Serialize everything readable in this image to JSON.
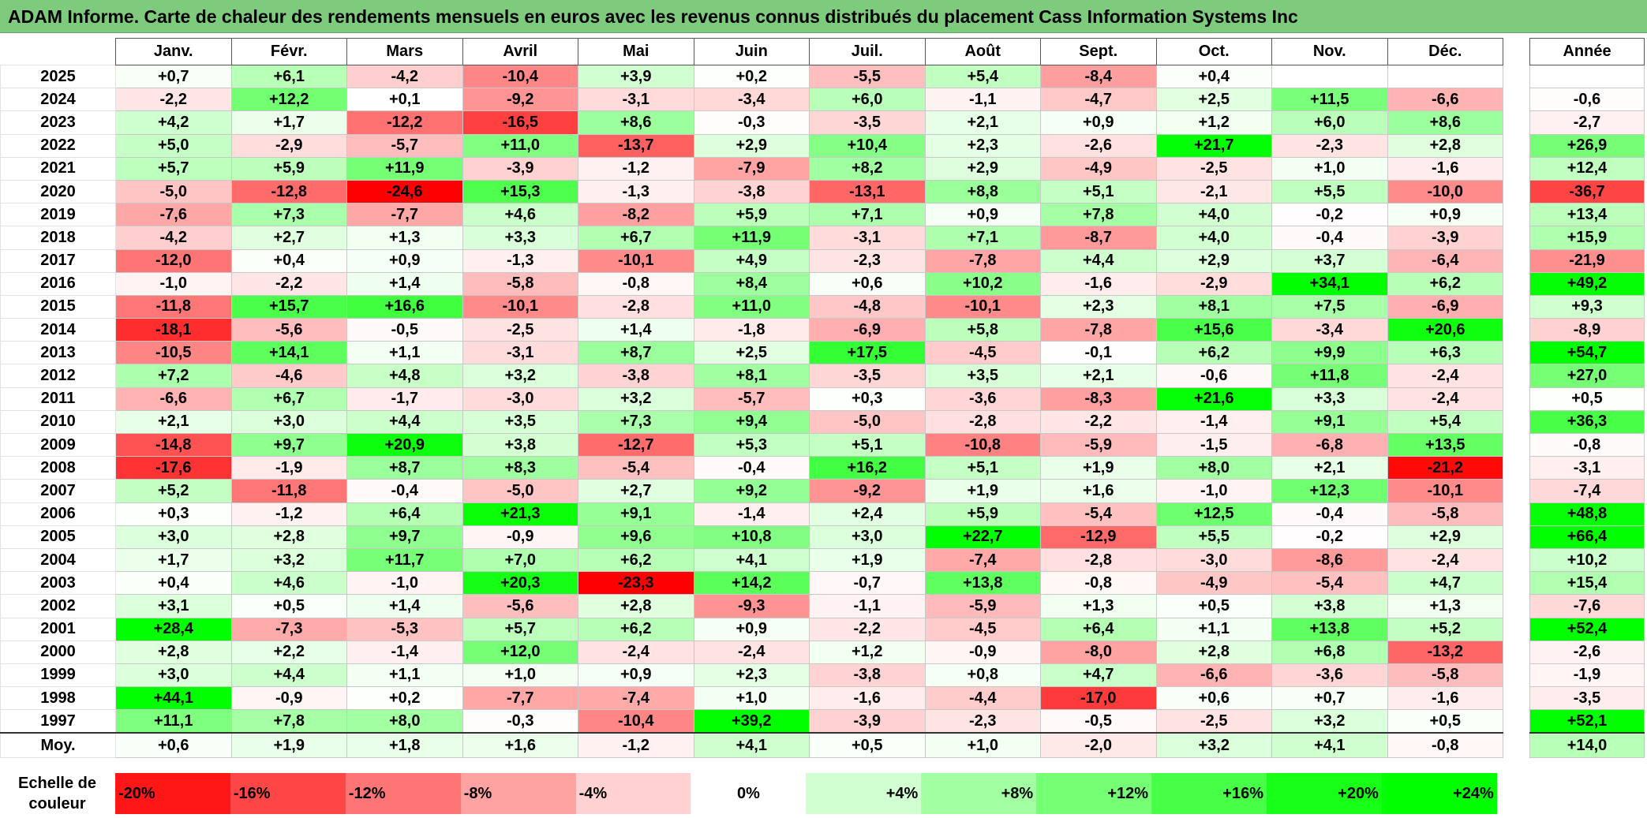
{
  "title": "ADAM Informe. Carte de chaleur des rendements mensuels en euros avec les revenus connus distribués du placement Cass Information Systems Inc",
  "months": [
    "Janv.",
    "Févr.",
    "Mars",
    "Avril",
    "Mai",
    "Juin",
    "Juil.",
    "Août",
    "Sept.",
    "Oct.",
    "Nov.",
    "Déc."
  ],
  "year_header": "Année",
  "avg_label": "Moy.",
  "scale_label": "Echelle de couleur",
  "scale": [
    "-20%",
    "-16%",
    "-12%",
    "-8%",
    "-4%",
    "0%",
    "+4%",
    "+8%",
    "+12%",
    "+16%",
    "+20%",
    "+24%"
  ],
  "colors": {
    "negative": "#ff0000",
    "positive": "#00ff00",
    "neutral": "#ffffff",
    "title_bg": "#7ecb7e"
  },
  "chart_data": {
    "type": "heatmap",
    "rows": [
      {
        "year": "2025",
        "m": [
          "+0,7",
          "+6,1",
          "-4,2",
          "-10,4",
          "+3,9",
          "+0,2",
          "-5,5",
          "+5,4",
          "-8,4",
          "+0,4",
          "",
          ""
        ],
        "annual": ""
      },
      {
        "year": "2024",
        "m": [
          "-2,2",
          "+12,2",
          "+0,1",
          "-9,2",
          "-3,1",
          "-3,4",
          "+6,0",
          "-1,1",
          "-4,7",
          "+2,5",
          "+11,5",
          "-6,6"
        ],
        "annual": "-0,6"
      },
      {
        "year": "2023",
        "m": [
          "+4,2",
          "+1,7",
          "-12,2",
          "-16,5",
          "+8,6",
          "-0,3",
          "-3,5",
          "+2,1",
          "+0,9",
          "+1,2",
          "+6,0",
          "+8,6"
        ],
        "annual": "-2,7"
      },
      {
        "year": "2022",
        "m": [
          "+5,0",
          "-2,9",
          "-5,7",
          "+11,0",
          "-13,7",
          "+2,9",
          "+10,4",
          "+2,3",
          "-2,6",
          "+21,7",
          "-2,3",
          "+2,8"
        ],
        "annual": "+26,9"
      },
      {
        "year": "2021",
        "m": [
          "+5,7",
          "+5,9",
          "+11,9",
          "-3,9",
          "-1,2",
          "-7,9",
          "+8,2",
          "+2,9",
          "-4,9",
          "-2,5",
          "+1,0",
          "-1,6"
        ],
        "annual": "+12,4"
      },
      {
        "year": "2020",
        "m": [
          "-5,0",
          "-12,8",
          "-24,6",
          "+15,3",
          "-1,3",
          "-3,8",
          "-13,1",
          "+8,8",
          "+5,1",
          "-2,1",
          "+5,5",
          "-10,0"
        ],
        "annual": "-36,7"
      },
      {
        "year": "2019",
        "m": [
          "-7,6",
          "+7,3",
          "-7,7",
          "+4,6",
          "-8,2",
          "+5,9",
          "+7,1",
          "+0,9",
          "+7,8",
          "+4,0",
          "-0,2",
          "+0,9"
        ],
        "annual": "+13,4"
      },
      {
        "year": "2018",
        "m": [
          "-4,2",
          "+2,7",
          "+1,3",
          "+3,3",
          "+6,7",
          "+11,9",
          "-3,1",
          "+7,1",
          "-8,7",
          "+4,0",
          "-0,4",
          "-3,9"
        ],
        "annual": "+15,9"
      },
      {
        "year": "2017",
        "m": [
          "-12,0",
          "+0,4",
          "+0,9",
          "-1,3",
          "-10,1",
          "+4,9",
          "-2,3",
          "-7,8",
          "+4,4",
          "+2,9",
          "+3,7",
          "-6,4"
        ],
        "annual": "-21,9"
      },
      {
        "year": "2016",
        "m": [
          "-1,0",
          "-2,2",
          "+1,4",
          "-5,8",
          "-0,8",
          "+8,4",
          "+0,6",
          "+10,2",
          "-1,6",
          "-2,9",
          "+34,1",
          "+6,2"
        ],
        "annual": "+49,2"
      },
      {
        "year": "2015",
        "m": [
          "-11,8",
          "+15,7",
          "+16,6",
          "-10,1",
          "-2,8",
          "+11,0",
          "-4,8",
          "-10,1",
          "+2,3",
          "+8,1",
          "+7,5",
          "-6,9"
        ],
        "annual": "+9,3"
      },
      {
        "year": "2014",
        "m": [
          "-18,1",
          "-5,6",
          "-0,5",
          "-2,5",
          "+1,4",
          "-1,8",
          "-6,9",
          "+5,8",
          "-7,8",
          "+15,6",
          "-3,4",
          "+20,6"
        ],
        "annual": "-8,9"
      },
      {
        "year": "2013",
        "m": [
          "-10,5",
          "+14,1",
          "+1,1",
          "-3,1",
          "+8,7",
          "+2,5",
          "+17,5",
          "-4,5",
          "-0,1",
          "+6,2",
          "+9,9",
          "+6,3"
        ],
        "annual": "+54,7"
      },
      {
        "year": "2012",
        "m": [
          "+7,2",
          "-4,6",
          "+4,8",
          "+3,2",
          "-3,8",
          "+8,1",
          "-3,5",
          "+3,5",
          "+2,1",
          "-0,6",
          "+11,8",
          "-2,4"
        ],
        "annual": "+27,0"
      },
      {
        "year": "2011",
        "m": [
          "-6,6",
          "+6,7",
          "-1,7",
          "-3,0",
          "+3,2",
          "-5,7",
          "+0,3",
          "-3,6",
          "-8,3",
          "+21,6",
          "+3,3",
          "-2,4"
        ],
        "annual": "+0,5"
      },
      {
        "year": "2010",
        "m": [
          "+2,1",
          "+3,0",
          "+4,4",
          "+3,5",
          "+7,3",
          "+9,4",
          "-5,0",
          "-2,8",
          "-2,2",
          "-1,4",
          "+9,1",
          "+5,4"
        ],
        "annual": "+36,3"
      },
      {
        "year": "2009",
        "m": [
          "-14,8",
          "+9,7",
          "+20,9",
          "+3,8",
          "-12,7",
          "+5,3",
          "+5,1",
          "-10,8",
          "-5,9",
          "-1,5",
          "-6,8",
          "+13,5"
        ],
        "annual": "-0,8"
      },
      {
        "year": "2008",
        "m": [
          "-17,6",
          "-1,9",
          "+8,7",
          "+8,3",
          "-5,4",
          "-0,4",
          "+16,2",
          "+5,1",
          "+1,9",
          "+8,0",
          "+2,1",
          "-21,2"
        ],
        "annual": "-3,1"
      },
      {
        "year": "2007",
        "m": [
          "+5,2",
          "-11,8",
          "-0,4",
          "-5,0",
          "+2,7",
          "+9,2",
          "-9,2",
          "+1,9",
          "+1,6",
          "-1,0",
          "+12,3",
          "-10,1"
        ],
        "annual": "-7,4"
      },
      {
        "year": "2006",
        "m": [
          "+0,3",
          "-1,2",
          "+6,4",
          "+21,3",
          "+9,1",
          "-1,4",
          "+2,4",
          "+5,9",
          "-5,4",
          "+12,5",
          "-0,4",
          "-5,8"
        ],
        "annual": "+48,8"
      },
      {
        "year": "2005",
        "m": [
          "+3,0",
          "+2,8",
          "+9,7",
          "-0,9",
          "+9,6",
          "+10,8",
          "+3,0",
          "+22,7",
          "-12,9",
          "+5,5",
          "-0,2",
          "+2,9"
        ],
        "annual": "+66,4"
      },
      {
        "year": "2004",
        "m": [
          "+1,7",
          "+3,2",
          "+11,7",
          "+7,0",
          "+6,2",
          "+4,1",
          "+1,9",
          "-7,4",
          "-2,8",
          "-3,0",
          "-8,6",
          "-2,4"
        ],
        "annual": "+10,2"
      },
      {
        "year": "2003",
        "m": [
          "+0,4",
          "+4,6",
          "-1,0",
          "+20,3",
          "-23,3",
          "+14,2",
          "-0,7",
          "+13,8",
          "-0,8",
          "-4,9",
          "-5,4",
          "+4,7"
        ],
        "annual": "+15,4"
      },
      {
        "year": "2002",
        "m": [
          "+3,1",
          "+0,5",
          "+1,4",
          "-5,6",
          "+2,8",
          "-9,3",
          "-1,1",
          "-5,9",
          "+1,3",
          "+0,5",
          "+3,8",
          "+1,3"
        ],
        "annual": "-7,6"
      },
      {
        "year": "2001",
        "m": [
          "+28,4",
          "-7,3",
          "-5,3",
          "+5,7",
          "+6,2",
          "+0,9",
          "-2,2",
          "-4,5",
          "+6,4",
          "+1,1",
          "+13,8",
          "+5,2"
        ],
        "annual": "+52,4"
      },
      {
        "year": "2000",
        "m": [
          "+2,8",
          "+2,2",
          "-1,4",
          "+12,0",
          "-2,4",
          "-2,4",
          "+1,2",
          "-0,9",
          "-8,0",
          "+2,8",
          "+6,8",
          "-13,2"
        ],
        "annual": "-2,6"
      },
      {
        "year": "1999",
        "m": [
          "+3,0",
          "+4,4",
          "+1,1",
          "+1,0",
          "+0,9",
          "+2,3",
          "-3,8",
          "+0,8",
          "+4,7",
          "-6,6",
          "-3,6",
          "-5,8"
        ],
        "annual": "-1,9"
      },
      {
        "year": "1998",
        "m": [
          "+44,1",
          "-0,9",
          "+0,2",
          "-7,7",
          "-7,4",
          "+1,0",
          "-1,6",
          "-4,4",
          "-17,0",
          "+0,6",
          "+0,7",
          "-1,6"
        ],
        "annual": "-3,5"
      },
      {
        "year": "1997",
        "m": [
          "+11,1",
          "+7,8",
          "+8,0",
          "-0,3",
          "-10,4",
          "+39,2",
          "-3,9",
          "-2,3",
          "-0,5",
          "-2,5",
          "+3,2",
          "+0,5"
        ],
        "annual": "+52,1"
      }
    ],
    "average": {
      "m": [
        "+0,6",
        "+1,9",
        "+1,8",
        "+1,6",
        "-1,2",
        "+4,1",
        "+0,5",
        "+1,0",
        "-2,0",
        "+3,2",
        "+4,1",
        "-0,8"
      ],
      "annual": "+14,0"
    }
  }
}
